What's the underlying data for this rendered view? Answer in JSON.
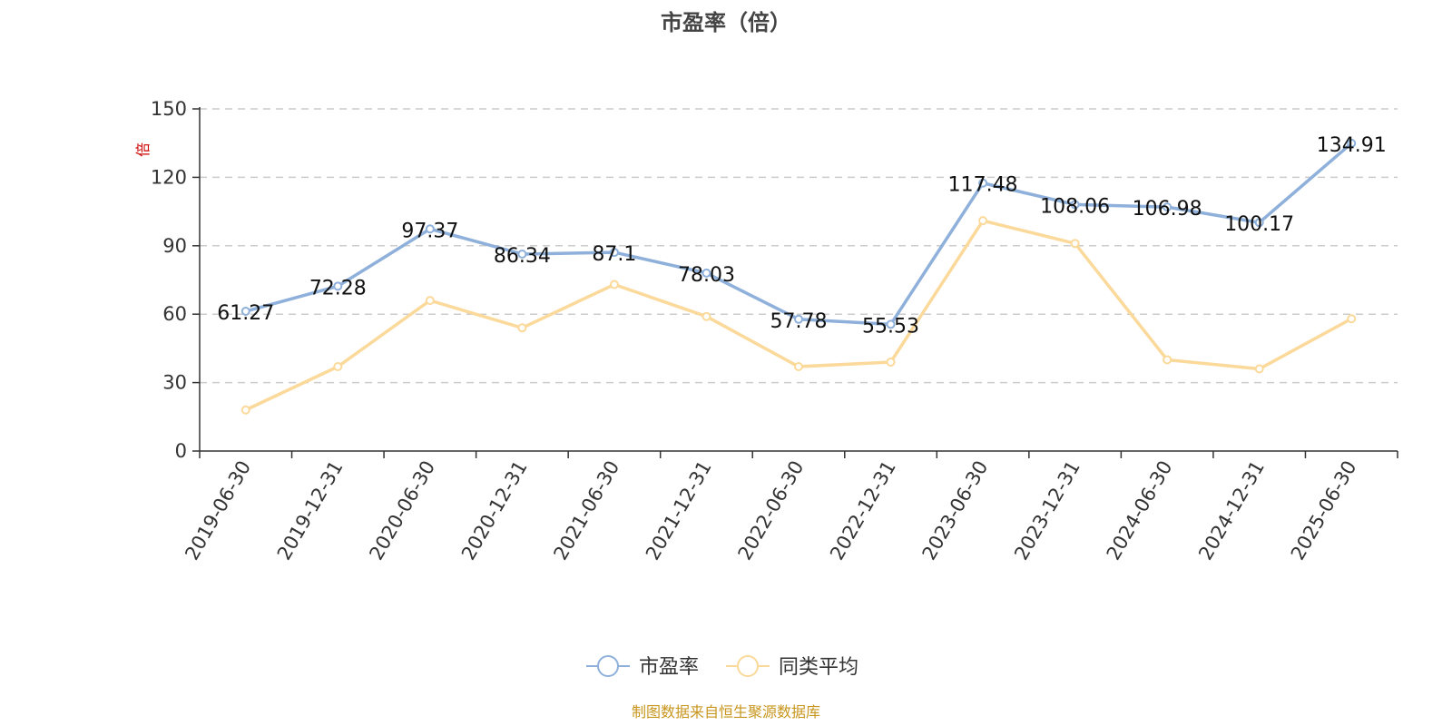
{
  "chart_data": {
    "type": "line",
    "title": "市盈率（倍）",
    "ylabel": "倍",
    "ylim": [
      0,
      150
    ],
    "yticks": [
      0,
      30,
      60,
      90,
      120,
      150
    ],
    "grid": true,
    "legend_position": "bottom",
    "categories": [
      "2019-06-30",
      "2019-12-31",
      "2020-06-30",
      "2020-12-31",
      "2021-06-30",
      "2021-12-31",
      "2022-06-30",
      "2022-12-31",
      "2023-06-30",
      "2023-12-31",
      "2024-06-30",
      "2024-12-31",
      "2025-06-30"
    ],
    "series": [
      {
        "name": "市盈率",
        "color": "#8eb0da",
        "values": [
          61.27,
          72.28,
          97.37,
          86.34,
          87.1,
          78.03,
          57.78,
          55.53,
          117.48,
          108.06,
          106.98,
          100.17,
          134.91
        ],
        "labels": [
          "61.27",
          "72.28",
          "97.37",
          "86.34",
          "87.1",
          "78.03",
          "57.78",
          "55.53",
          "117.48",
          "108.06",
          "106.98",
          "100.17",
          "134.91"
        ]
      },
      {
        "name": "同类平均",
        "color": "#fbd99a",
        "values": [
          18,
          37,
          66,
          54,
          73,
          59,
          37,
          39,
          101,
          91,
          40,
          36,
          58
        ]
      }
    ],
    "source": "制图数据来自恒生聚源数据库"
  }
}
